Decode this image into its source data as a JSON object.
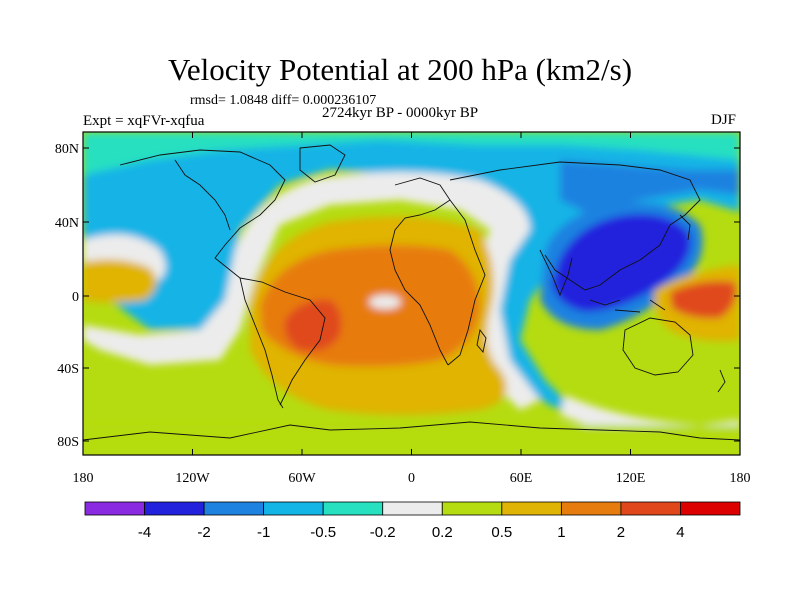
{
  "title": "Velocity Potential at 200 hPa (km2/s)",
  "stats": "rmsd= 1.0848 diff= 0.000236107",
  "period": "2724kyr BP - 0000kyr BP",
  "experiment": "Expt = xqFVr-xqfua",
  "season": "DJF",
  "lat_ticks": [
    "80N",
    "40N",
    "0",
    "40S",
    "80S"
  ],
  "lon_ticks": [
    "180",
    "120W",
    "60W",
    "0",
    "60E",
    "120E",
    "180"
  ],
  "colorbar": {
    "labels": [
      "-4",
      "-2",
      "-1",
      "-0.5",
      "-0.2",
      "0.2",
      "0.5",
      "1",
      "2",
      "4"
    ],
    "colors": [
      "#8a2be2",
      "#2222dd",
      "#1e82e0",
      "#13b4e6",
      "#26e0c0",
      "#ececec",
      "#b5dc10",
      "#e0b405",
      "#e77c0e",
      "#e0481b",
      "#dd0000"
    ]
  }
}
